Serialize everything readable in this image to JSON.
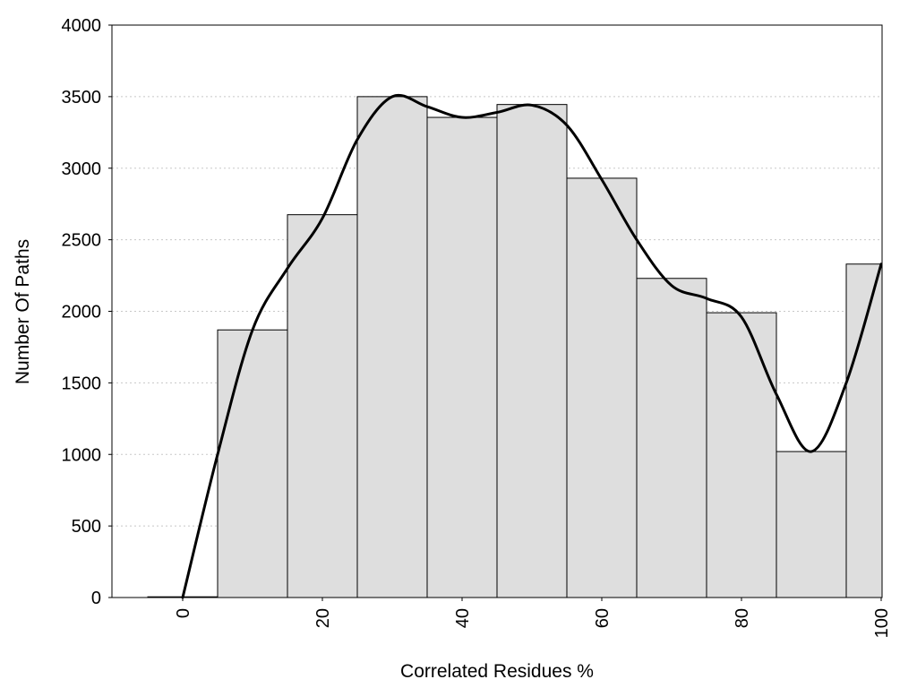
{
  "chart_data": {
    "type": "bar",
    "title": "",
    "xlabel": "Correlated Residues %",
    "ylabel": "Number Of Paths",
    "x_ticks": [
      0,
      20,
      40,
      60,
      80,
      100
    ],
    "y_ticks": [
      0,
      500,
      1000,
      1500,
      2000,
      2500,
      3000,
      3500,
      4000
    ],
    "xlim": [
      -10,
      100
    ],
    "ylim": [
      0,
      4000
    ],
    "bin_width": 10,
    "grid": "horizontal dotted",
    "legend": "none",
    "bars": [
      {
        "x": 0,
        "value": 5
      },
      {
        "x": 10,
        "value": 1870
      },
      {
        "x": 20,
        "value": 2675
      },
      {
        "x": 30,
        "value": 3500
      },
      {
        "x": 40,
        "value": 3355
      },
      {
        "x": 50,
        "value": 3445
      },
      {
        "x": 60,
        "value": 2930
      },
      {
        "x": 70,
        "value": 2230
      },
      {
        "x": 80,
        "value": 1990
      },
      {
        "x": 90,
        "value": 1020
      },
      {
        "x": 100,
        "value": 2330
      }
    ],
    "smooth_curve": [
      {
        "x": 0,
        "y": 0
      },
      {
        "x": 5,
        "y": 1000
      },
      {
        "x": 10,
        "y": 1870
      },
      {
        "x": 15,
        "y": 2300
      },
      {
        "x": 20,
        "y": 2650
      },
      {
        "x": 25,
        "y": 3200
      },
      {
        "x": 30,
        "y": 3500
      },
      {
        "x": 35,
        "y": 3430
      },
      {
        "x": 40,
        "y": 3355
      },
      {
        "x": 45,
        "y": 3390
      },
      {
        "x": 50,
        "y": 3440
      },
      {
        "x": 55,
        "y": 3300
      },
      {
        "x": 60,
        "y": 2920
      },
      {
        "x": 65,
        "y": 2500
      },
      {
        "x": 70,
        "y": 2180
      },
      {
        "x": 75,
        "y": 2090
      },
      {
        "x": 80,
        "y": 1960
      },
      {
        "x": 85,
        "y": 1420
      },
      {
        "x": 90,
        "y": 1020
      },
      {
        "x": 95,
        "y": 1500
      },
      {
        "x": 100,
        "y": 2330
      }
    ],
    "colors": {
      "bar_fill": "#dedede",
      "bar_stroke": "#000000",
      "curve": "#000000"
    }
  }
}
